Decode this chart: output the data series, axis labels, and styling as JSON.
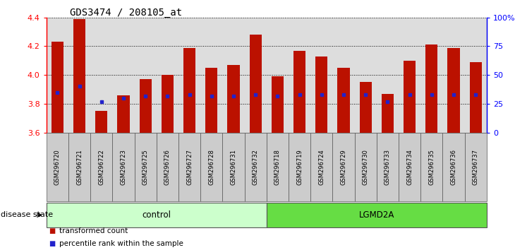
{
  "title": "GDS3474 / 208105_at",
  "samples": [
    "GSM296720",
    "GSM296721",
    "GSM296722",
    "GSM296723",
    "GSM296725",
    "GSM296726",
    "GSM296727",
    "GSM296728",
    "GSM296731",
    "GSM296732",
    "GSM296718",
    "GSM296719",
    "GSM296724",
    "GSM296729",
    "GSM296730",
    "GSM296733",
    "GSM296734",
    "GSM296735",
    "GSM296736",
    "GSM296737"
  ],
  "transformed_counts": [
    4.23,
    4.39,
    3.75,
    3.86,
    3.97,
    4.0,
    4.19,
    4.05,
    4.07,
    4.28,
    3.99,
    4.17,
    4.13,
    4.05,
    3.95,
    3.87,
    4.1,
    4.21,
    4.19,
    4.09
  ],
  "percentile_ranks": [
    35,
    40,
    27,
    30,
    32,
    32,
    33,
    32,
    32,
    33,
    32,
    33,
    33,
    33,
    33,
    27,
    33,
    33,
    33,
    33
  ],
  "group_labels": [
    "control",
    "LGMD2A"
  ],
  "group_counts": [
    10,
    10
  ],
  "group_colors": [
    "#ccffcc",
    "#66dd44"
  ],
  "ylim": [
    3.6,
    4.4
  ],
  "yticks": [
    3.6,
    3.8,
    4.0,
    4.2,
    4.4
  ],
  "right_yticks": [
    0,
    25,
    50,
    75,
    100
  ],
  "bar_color": "#bb1100",
  "marker_color": "#2222cc",
  "bar_width": 0.55,
  "background_color": "#ffffff",
  "plot_bg_color": "#dddddd",
  "title_fontsize": 10,
  "tick_fontsize": 7
}
